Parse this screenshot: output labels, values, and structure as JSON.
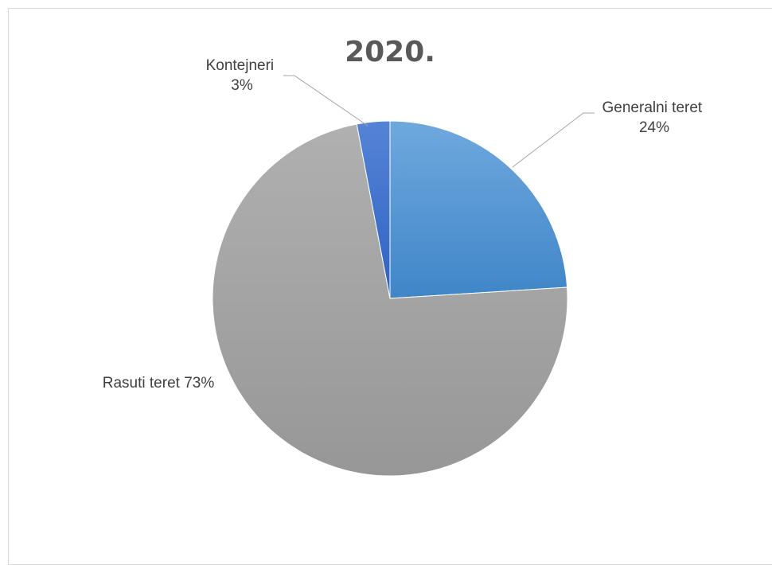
{
  "chart_data": {
    "type": "pie",
    "title": "2020.",
    "categories": [
      "Generalni teret",
      "Rasuti teret",
      "Kontejneri"
    ],
    "values": [
      24,
      73,
      3
    ],
    "value_unit": "%",
    "colors": [
      "#5b9bd5",
      "#a5a5a5",
      "#4472c4"
    ],
    "data_labels": [
      {
        "line1": "Generalni teret",
        "line2": "24%"
      },
      {
        "line1": "Rasuti teret 73%",
        "line2": ""
      },
      {
        "line1": "Kontejneri",
        "line2": "3%"
      }
    ],
    "legend": "none"
  }
}
